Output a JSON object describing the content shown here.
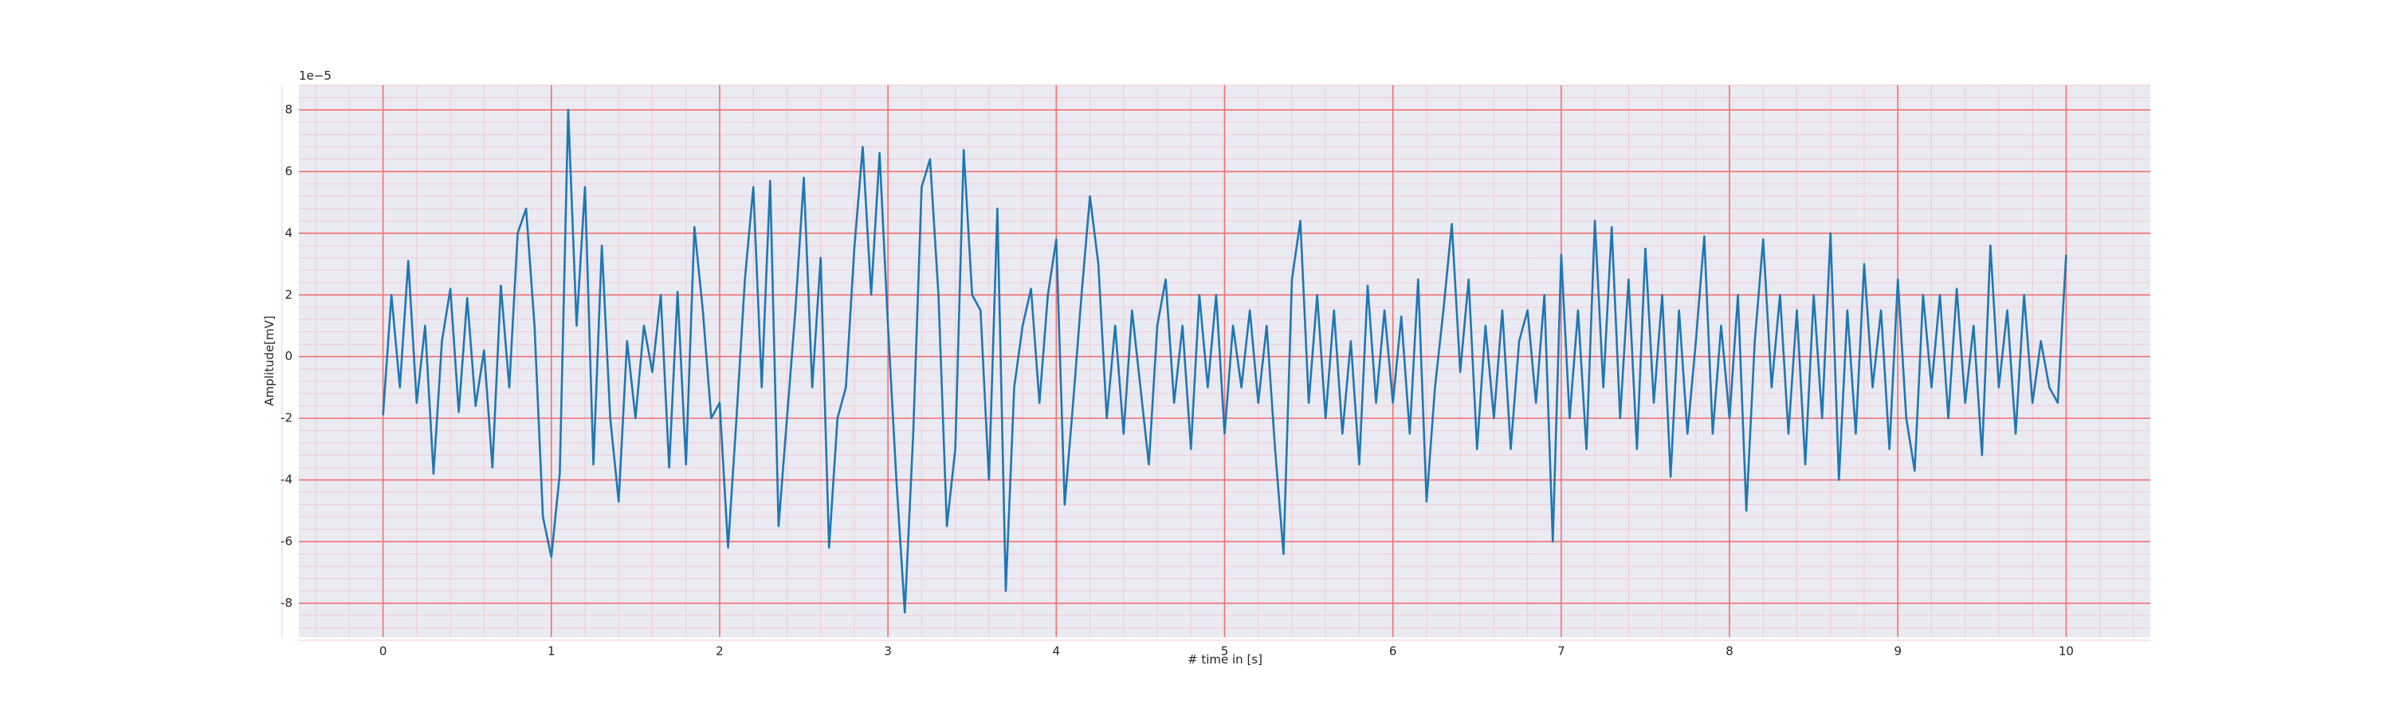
{
  "chart_data": {
    "type": "line",
    "xlabel": "# time in [s]",
    "ylabel": "Amplitude[mV]",
    "y_offset_label": "1e−5",
    "xlim": [
      -0.5,
      10.5
    ],
    "ylim": [
      -9.1,
      8.8
    ],
    "xticks": [
      0,
      1,
      2,
      3,
      4,
      5,
      6,
      7,
      8,
      9,
      10
    ],
    "yticks": [
      -8,
      -6,
      -4,
      -2,
      0,
      2,
      4,
      6,
      8
    ],
    "grid": true,
    "grid_color": "#f07070",
    "minor_grid": true,
    "minor_grid_color": "#f6c8d2",
    "background": "#eaeaf2",
    "x": [
      0,
      0.05,
      0.1,
      0.15,
      0.2,
      0.25,
      0.3,
      0.35,
      0.4,
      0.45,
      0.5,
      0.55,
      0.6,
      0.65,
      0.7,
      0.75,
      0.8,
      0.85,
      0.9,
      0.95,
      1,
      1.05,
      1.1,
      1.15,
      1.2,
      1.25,
      1.3,
      1.35,
      1.4,
      1.45,
      1.5,
      1.55,
      1.6,
      1.65,
      1.7,
      1.75,
      1.8,
      1.85,
      1.9,
      1.95,
      2,
      2.05,
      2.1,
      2.15,
      2.2,
      2.25,
      2.3,
      2.35,
      2.4,
      2.45,
      2.5,
      2.55,
      2.6,
      2.65,
      2.7,
      2.75,
      2.8,
      2.85,
      2.9,
      2.95,
      3,
      3.05,
      3.1,
      3.15,
      3.2,
      3.25,
      3.3,
      3.35,
      3.4,
      3.45,
      3.5,
      3.55,
      3.6,
      3.65,
      3.7,
      3.75,
      3.8,
      3.85,
      3.9,
      3.95,
      4,
      4.05,
      4.1,
      4.15,
      4.2,
      4.25,
      4.3,
      4.35,
      4.4,
      4.45,
      4.5,
      4.55,
      4.6,
      4.65,
      4.7,
      4.75,
      4.8,
      4.85,
      4.9,
      4.95,
      5,
      5.05,
      5.1,
      5.15,
      5.2,
      5.25,
      5.3,
      5.35,
      5.4,
      5.45,
      5.5,
      5.55,
      5.6,
      5.65,
      5.7,
      5.75,
      5.8,
      5.85,
      5.9,
      5.95,
      6,
      6.05,
      6.1,
      6.15,
      6.2,
      6.25,
      6.3,
      6.35,
      6.4,
      6.45,
      6.5,
      6.55,
      6.6,
      6.65,
      6.7,
      6.75,
      6.8,
      6.85,
      6.9,
      6.95,
      7,
      7.05,
      7.1,
      7.15,
      7.2,
      7.25,
      7.3,
      7.35,
      7.4,
      7.45,
      7.5,
      7.55,
      7.6,
      7.65,
      7.7,
      7.75,
      7.8,
      7.85,
      7.9,
      7.95,
      8,
      8.05,
      8.1,
      8.15,
      8.2,
      8.25,
      8.3,
      8.35,
      8.4,
      8.45,
      8.5,
      8.55,
      8.6,
      8.65,
      8.7,
      8.75,
      8.8,
      8.85,
      8.9,
      8.95,
      9,
      9.05,
      9.1,
      9.15,
      9.2,
      9.25,
      9.3,
      9.35,
      9.4,
      9.45,
      9.5,
      9.55,
      9.6,
      9.65,
      9.7,
      9.75,
      9.8,
      9.85,
      9.9,
      9.95,
      10
    ],
    "series": [
      {
        "color": "#1f77b4",
        "values": [
          -1.9,
          2.0,
          -1.0,
          3.1,
          -1.5,
          1.0,
          -3.8,
          0.5,
          2.2,
          -1.8,
          1.9,
          -1.6,
          0.2,
          -3.6,
          2.3,
          -1.0,
          4.0,
          4.8,
          1.0,
          -5.2,
          -6.5,
          -3.8,
          8.0,
          1.0,
          5.5,
          -3.5,
          3.6,
          -2.0,
          -4.7,
          0.5,
          -2.0,
          1.0,
          -0.5,
          2.0,
          -3.6,
          2.1,
          -3.5,
          4.2,
          1.5,
          -2.0,
          -1.5,
          -6.2,
          -2.0,
          2.5,
          5.5,
          -1.0,
          5.7,
          -5.5,
          -2.0,
          1.5,
          5.8,
          -1.0,
          3.2,
          -6.2,
          -2.0,
          -1.0,
          3.5,
          6.8,
          2.0,
          6.6,
          1.0,
          -4.0,
          -8.3,
          -2.5,
          5.5,
          6.4,
          2.0,
          -5.5,
          -3.0,
          6.7,
          2.0,
          1.5,
          -4.0,
          4.8,
          -7.6,
          -1.0,
          1.0,
          2.2,
          -1.5,
          2.0,
          3.8,
          -4.8,
          -1.5,
          2.0,
          5.2,
          3.0,
          -2.0,
          1.0,
          -2.5,
          1.5,
          -1.0,
          -3.5,
          1.0,
          2.5,
          -1.5,
          1.0,
          -3.0,
          2.0,
          -1.0,
          2.0,
          -2.5,
          1.0,
          -1.0,
          1.5,
          -1.5,
          1.0,
          -3.0,
          -6.4,
          2.5,
          4.4,
          -1.5,
          2.0,
          -2.0,
          1.5,
          -2.5,
          0.5,
          -3.5,
          2.3,
          -1.5,
          1.5,
          -1.5,
          1.3,
          -2.5,
          2.5,
          -4.7,
          -1.0,
          1.5,
          4.3,
          -0.5,
          2.5,
          -3.0,
          1.0,
          -2.0,
          1.5,
          -3.0,
          0.5,
          1.5,
          -1.5,
          2.0,
          -6.0,
          3.3,
          -2.0,
          1.5,
          -3.0,
          4.4,
          -1.0,
          4.2,
          -2.0,
          2.5,
          -3.0,
          3.5,
          -1.5,
          2.0,
          -3.9,
          1.5,
          -2.5,
          0.5,
          3.9,
          -2.5,
          1.0,
          -2.0,
          2.0,
          -5.0,
          0.5,
          3.8,
          -1.0,
          2.0,
          -2.5,
          1.5,
          -3.5,
          2.0,
          -2.0,
          4.0,
          -4.0,
          1.5,
          -2.5,
          3.0,
          -1.0,
          1.5,
          -3.0,
          2.5,
          -2.0,
          -3.7,
          2.0,
          -1.0,
          2.0,
          -2.0,
          2.2,
          -1.5,
          1.0,
          -3.2,
          3.6,
          -1.0,
          1.5,
          -2.5,
          2.0,
          -1.5,
          0.5,
          -1.0,
          -1.5,
          3.3
        ]
      }
    ]
  }
}
